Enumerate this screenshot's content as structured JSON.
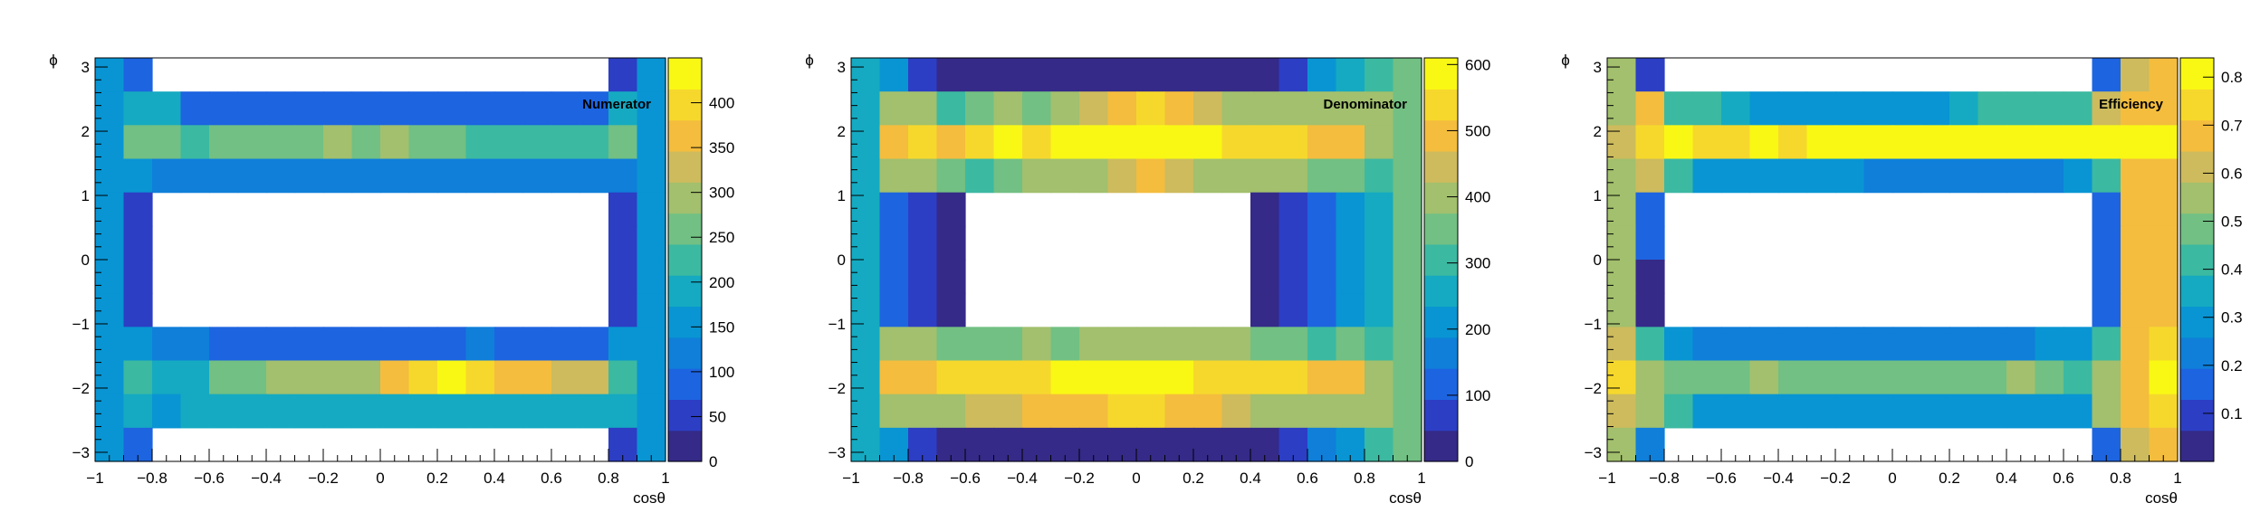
{
  "palette": [
    "#352a87",
    "#2c3ec4",
    "#1d64e0",
    "#0f7fd9",
    "#0995d3",
    "#15aac1",
    "#3cb9a1",
    "#72c083",
    "#a2c06d",
    "#cdbb5d",
    "#f4bd3e",
    "#f6d82c",
    "#f9f815"
  ],
  "chart_data": [
    {
      "type": "heatmap",
      "title": "Numerator",
      "xlabel": "cosθ",
      "ylabel": "ϕ",
      "xlim": [
        -1,
        1
      ],
      "ylim": [
        -3.14159,
        3.14159
      ],
      "zlim": [
        0,
        450
      ],
      "x_ticks": [
        -1,
        -0.8,
        -0.6,
        -0.4,
        -0.2,
        0,
        0.2,
        0.4,
        0.6,
        0.8,
        1
      ],
      "x_tick_labels": [
        "−1",
        "−0.8",
        "−0.6",
        "−0.4",
        "−0.2",
        "0",
        "0.2",
        "0.4",
        "0.6",
        "0.8",
        "1"
      ],
      "y_ticks": [
        -3,
        -2,
        -1,
        0,
        1,
        2,
        3
      ],
      "y_tick_labels": [
        "−3",
        "−2",
        "−1",
        "0",
        "1",
        "2",
        "3"
      ],
      "z_ticks": [
        0,
        50,
        100,
        150,
        200,
        250,
        300,
        350,
        400
      ],
      "z_tick_labels": [
        "0",
        "50",
        "100",
        "150",
        "200",
        "250",
        "300",
        "350",
        "400"
      ],
      "nx": 20,
      "ny": 12,
      "z": [
        [
          150,
          100,
          0,
          0,
          0,
          0,
          0,
          0,
          0,
          0,
          0,
          0,
          0,
          0,
          0,
          0,
          0,
          0,
          40,
          150
        ],
        [
          150,
          200,
          190,
          100,
          100,
          100,
          100,
          100,
          100,
          100,
          100,
          100,
          100,
          100,
          100,
          100,
          100,
          100,
          190,
          150
        ],
        [
          150,
          250,
          250,
          220,
          250,
          270,
          270,
          250,
          300,
          250,
          300,
          250,
          250,
          240,
          240,
          240,
          240,
          240,
          250,
          150
        ],
        [
          150,
          150,
          130,
          110,
          110,
          110,
          110,
          110,
          110,
          110,
          110,
          110,
          110,
          110,
          110,
          110,
          110,
          110,
          130,
          150
        ],
        [
          150,
          50,
          0,
          0,
          0,
          0,
          0,
          0,
          0,
          0,
          0,
          0,
          0,
          0,
          0,
          0,
          0,
          0,
          50,
          150
        ],
        [
          150,
          50,
          0,
          0,
          0,
          0,
          0,
          0,
          0,
          0,
          0,
          0,
          0,
          0,
          0,
          0,
          0,
          0,
          50,
          150
        ],
        [
          150,
          50,
          0,
          0,
          0,
          0,
          0,
          0,
          0,
          0,
          0,
          0,
          0,
          0,
          0,
          0,
          0,
          0,
          50,
          150
        ],
        [
          150,
          50,
          0,
          0,
          0,
          0,
          0,
          0,
          0,
          0,
          0,
          0,
          0,
          0,
          0,
          0,
          0,
          0,
          50,
          150
        ],
        [
          150,
          150,
          120,
          110,
          100,
          100,
          100,
          90,
          100,
          100,
          80,
          100,
          100,
          120,
          100,
          100,
          100,
          100,
          150,
          150
        ],
        [
          150,
          230,
          200,
          200,
          250,
          250,
          280,
          280,
          300,
          300,
          350,
          400,
          420,
          400,
          360,
          350,
          320,
          330,
          230,
          150
        ],
        [
          150,
          200,
          150,
          180,
          180,
          180,
          180,
          180,
          180,
          180,
          180,
          180,
          180,
          180,
          180,
          180,
          180,
          180,
          200,
          150
        ],
        [
          150,
          80,
          0,
          0,
          0,
          0,
          0,
          0,
          0,
          0,
          0,
          0,
          0,
          0,
          0,
          0,
          0,
          0,
          50,
          150
        ]
      ]
    },
    {
      "type": "heatmap",
      "title": "Denominator",
      "xlabel": "cosθ",
      "ylabel": "ϕ",
      "xlim": [
        -1,
        1
      ],
      "ylim": [
        -3.14159,
        3.14159
      ],
      "zlim": [
        0,
        610
      ],
      "x_ticks": [
        -1,
        -0.8,
        -0.6,
        -0.4,
        -0.2,
        0,
        0.2,
        0.4,
        0.6,
        0.8,
        1
      ],
      "x_tick_labels": [
        "−1",
        "−0.8",
        "−0.6",
        "−0.4",
        "−0.2",
        "0",
        "0.2",
        "0.4",
        "0.6",
        "0.8",
        "1"
      ],
      "y_ticks": [
        -3,
        -2,
        -1,
        0,
        1,
        2,
        3
      ],
      "y_tick_labels": [
        "−3",
        "−2",
        "−1",
        "0",
        "1",
        "2",
        "3"
      ],
      "z_ticks": [
        0,
        100,
        200,
        300,
        400,
        500,
        600
      ],
      "z_tick_labels": [
        "0",
        "100",
        "200",
        "300",
        "400",
        "500",
        "600"
      ],
      "nx": 20,
      "ny": 12,
      "z": [
        [
          280,
          200,
          80,
          40,
          40,
          40,
          40,
          40,
          40,
          40,
          40,
          40,
          40,
          40,
          40,
          80,
          200,
          280,
          300,
          330
        ],
        [
          280,
          400,
          400,
          320,
          340,
          400,
          350,
          380,
          450,
          500,
          520,
          500,
          450,
          400,
          400,
          400,
          400,
          400,
          400,
          330
        ],
        [
          280,
          500,
          520,
          500,
          560,
          570,
          550,
          570,
          590,
          600,
          600,
          600,
          590,
          560,
          520,
          520,
          500,
          480,
          400,
          330
        ],
        [
          280,
          400,
          400,
          350,
          300,
          350,
          400,
          400,
          420,
          450,
          480,
          450,
          420,
          400,
          400,
          380,
          340,
          350,
          300,
          330
        ],
        [
          280,
          130,
          80,
          40,
          0,
          0,
          0,
          0,
          0,
          0,
          0,
          0,
          0,
          0,
          40,
          80,
          130,
          200,
          280,
          330
        ],
        [
          280,
          130,
          50,
          40,
          0,
          0,
          0,
          0,
          0,
          0,
          0,
          0,
          0,
          0,
          40,
          80,
          130,
          200,
          280,
          330
        ],
        [
          280,
          130,
          50,
          40,
          0,
          0,
          0,
          0,
          0,
          0,
          0,
          0,
          0,
          0,
          40,
          80,
          130,
          200,
          280,
          330
        ],
        [
          280,
          130,
          50,
          40,
          0,
          0,
          0,
          0,
          0,
          0,
          0,
          0,
          0,
          0,
          40,
          80,
          130,
          200,
          280,
          330
        ],
        [
          280,
          400,
          400,
          350,
          350,
          350,
          380,
          350,
          380,
          380,
          400,
          380,
          380,
          380,
          350,
          350,
          320,
          350,
          300,
          330
        ],
        [
          280,
          500,
          500,
          530,
          550,
          560,
          560,
          580,
          600,
          610,
          600,
          580,
          560,
          560,
          520,
          530,
          500,
          480,
          400,
          330
        ],
        [
          280,
          400,
          400,
          400,
          450,
          460,
          470,
          480,
          500,
          520,
          520,
          500,
          480,
          450,
          400,
          400,
          400,
          400,
          400,
          330
        ],
        [
          280,
          200,
          80,
          40,
          40,
          40,
          40,
          40,
          40,
          40,
          40,
          40,
          40,
          40,
          40,
          80,
          150,
          200,
          300,
          330
        ]
      ]
    },
    {
      "type": "heatmap",
      "title": "Efficiency",
      "xlabel": "cosθ",
      "ylabel": "ϕ",
      "xlim": [
        -1,
        1
      ],
      "ylim": [
        -3.14159,
        3.14159
      ],
      "zlim": [
        0,
        0.84
      ],
      "x_ticks": [
        -1,
        -0.8,
        -0.6,
        -0.4,
        -0.2,
        0,
        0.2,
        0.4,
        0.6,
        0.8,
        1
      ],
      "x_tick_labels": [
        "−1",
        "−0.8",
        "−0.6",
        "−0.4",
        "−0.2",
        "0",
        "0.2",
        "0.4",
        "0.6",
        "0.8",
        "1"
      ],
      "y_ticks": [
        -3,
        -2,
        -1,
        0,
        1,
        2,
        3
      ],
      "y_tick_labels": [
        "−3",
        "−2",
        "−1",
        "0",
        "1",
        "2",
        "3"
      ],
      "z_ticks": [
        0.1,
        0.2,
        0.3,
        0.4,
        0.5,
        0.6,
        0.7,
        0.8
      ],
      "z_tick_labels": [
        "0.1",
        "0.2",
        "0.3",
        "0.4",
        "0.5",
        "0.6",
        "0.7",
        "0.8"
      ],
      "nx": 20,
      "ny": 12,
      "z": [
        [
          0.55,
          0.1,
          0,
          0,
          0,
          0,
          0,
          0,
          0,
          0,
          0,
          0,
          0,
          0,
          0,
          0,
          0,
          0.15,
          0.6,
          0.7
        ],
        [
          0.55,
          0.7,
          0.4,
          0.4,
          0.35,
          0.3,
          0.3,
          0.3,
          0.3,
          0.3,
          0.3,
          0.3,
          0.35,
          0.4,
          0.45,
          0.45,
          0.45,
          0.6,
          0.7,
          0.7
        ],
        [
          0.6,
          0.75,
          0.8,
          0.75,
          0.75,
          0.8,
          0.75,
          0.8,
          0.8,
          0.8,
          0.8,
          0.8,
          0.85,
          0.8,
          0.8,
          0.8,
          0.8,
          0.8,
          0.8,
          0.8
        ],
        [
          0.55,
          0.6,
          0.4,
          0.3,
          0.3,
          0.3,
          0.3,
          0.3,
          0.3,
          0.25,
          0.25,
          0.25,
          0.25,
          0.25,
          0.25,
          0.25,
          0.3,
          0.4,
          0.7,
          0.7
        ],
        [
          0.55,
          0.15,
          0,
          0,
          0,
          0,
          0,
          0,
          0,
          0,
          0,
          0,
          0,
          0,
          0,
          0,
          0,
          0.15,
          0.65,
          0.7
        ],
        [
          0.55,
          0.15,
          0,
          0,
          0,
          0,
          0,
          0,
          0,
          0,
          0,
          0,
          0,
          0,
          0,
          0,
          0,
          0.15,
          0.65,
          0.7
        ],
        [
          0.55,
          0.05,
          0,
          0,
          0,
          0,
          0,
          0,
          0,
          0,
          0,
          0,
          0,
          0,
          0,
          0,
          0,
          0.15,
          0.65,
          0.7
        ],
        [
          0.55,
          0.05,
          0,
          0,
          0,
          0,
          0,
          0,
          0,
          0,
          0,
          0,
          0,
          0,
          0,
          0,
          0,
          0.15,
          0.65,
          0.7
        ],
        [
          0.6,
          0.45,
          0.3,
          0.25,
          0.25,
          0.25,
          0.25,
          0.25,
          0.25,
          0.25,
          0.25,
          0.25,
          0.25,
          0.25,
          0.25,
          0.3,
          0.3,
          0.45,
          0.65,
          0.75
        ],
        [
          0.75,
          0.55,
          0.5,
          0.5,
          0.5,
          0.55,
          0.5,
          0.5,
          0.5,
          0.5,
          0.5,
          0.5,
          0.5,
          0.5,
          0.55,
          0.5,
          0.45,
          0.55,
          0.7,
          0.8
        ],
        [
          0.6,
          0.55,
          0.4,
          0.3,
          0.3,
          0.3,
          0.3,
          0.3,
          0.3,
          0.3,
          0.3,
          0.3,
          0.3,
          0.3,
          0.3,
          0.3,
          0.3,
          0.55,
          0.65,
          0.75
        ],
        [
          0.55,
          0.2,
          0,
          0,
          0,
          0,
          0,
          0,
          0,
          0,
          0,
          0,
          0,
          0,
          0,
          0,
          0,
          0.15,
          0.6,
          0.7
        ]
      ]
    }
  ]
}
